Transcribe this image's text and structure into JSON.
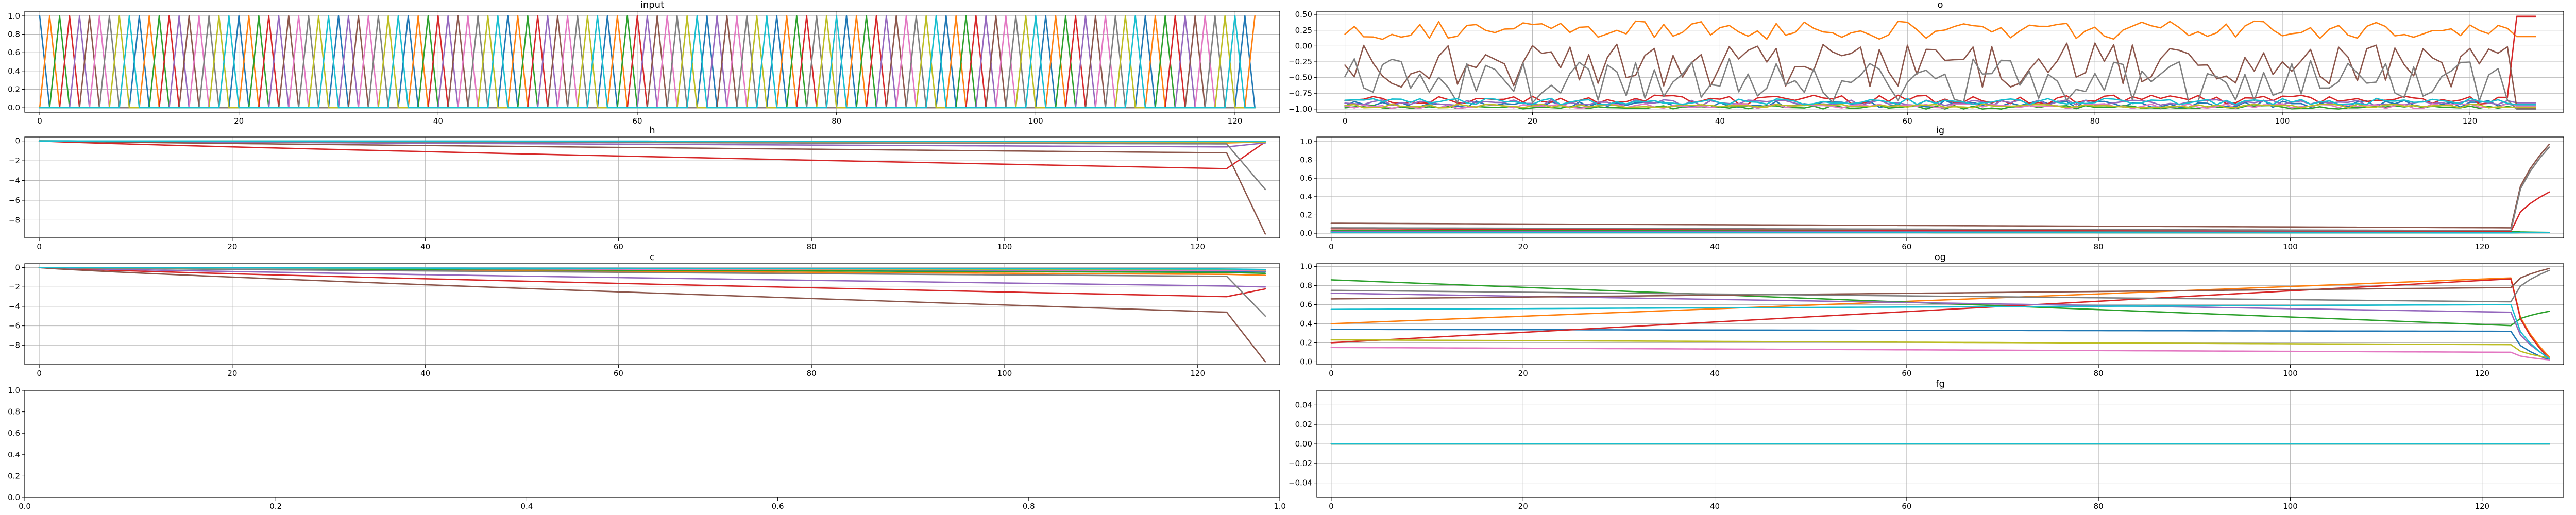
{
  "figure": {
    "background": "#ffffff"
  },
  "palette": [
    "#1f77b4",
    "#ff7f0e",
    "#2ca02c",
    "#d62728",
    "#9467bd",
    "#8c564b",
    "#e377c2",
    "#7f7f7f",
    "#bcbd22",
    "#17becf"
  ],
  "chart_data": [
    {
      "id": "input",
      "type": "line",
      "title": "input",
      "xlim": [
        -1.5,
        124.5
      ],
      "ylim": [
        -0.05,
        1.05
      ],
      "xticks": [
        0,
        20,
        40,
        60,
        80,
        100,
        120
      ],
      "xtick_labels": [
        "0",
        "20",
        "40",
        "60",
        "80",
        "100",
        "120"
      ],
      "yticks": [
        0,
        0.2,
        0.4,
        0.6,
        0.8,
        1.0
      ],
      "ytick_labels": [
        "0.0",
        "0.2",
        "0.4",
        "0.6",
        "0.8",
        "1.0"
      ],
      "grid": true,
      "series_generator": {
        "kind": "one-hot",
        "length": 123,
        "channels": 10,
        "colors": "palette"
      }
    },
    {
      "id": "o",
      "type": "line",
      "title": "o",
      "xlim": [
        -3,
        130
      ],
      "ylim": [
        -1.05,
        0.55
      ],
      "xticks": [
        0,
        20,
        40,
        60,
        80,
        100,
        120
      ],
      "xtick_labels": [
        "0",
        "20",
        "40",
        "60",
        "80",
        "100",
        "120"
      ],
      "yticks": [
        -1.0,
        -0.75,
        -0.5,
        -0.25,
        0.0,
        0.25,
        0.5
      ],
      "ytick_labels": [
        "−1.00",
        "−0.75",
        "−0.50",
        "−0.25",
        "0.00",
        "0.25",
        "0.50"
      ],
      "grid": true,
      "series_generator": {
        "kind": "noisy-levels",
        "length": 128,
        "jump_at": 124,
        "levels": [
          -0.92,
          0.25,
          -0.97,
          -0.85,
          -0.9,
          -0.3,
          -0.95,
          -0.55,
          -0.95,
          -0.88
        ],
        "noise": [
          0.06,
          0.15,
          0.03,
          0.07,
          0.05,
          0.35,
          0.04,
          0.35,
          0.03,
          0.05
        ],
        "end_values": [
          -0.95,
          0.15,
          -0.98,
          0.47,
          -0.9,
          -0.98,
          -0.95,
          -1.0,
          -0.97,
          -0.93
        ]
      }
    },
    {
      "id": "h",
      "type": "line",
      "title": "h",
      "xlim": [
        -1.5,
        128.5
      ],
      "ylim": [
        -9.8,
        0.4
      ],
      "xticks": [
        0,
        20,
        40,
        60,
        80,
        100,
        120
      ],
      "xtick_labels": [
        "0",
        "20",
        "40",
        "60",
        "80",
        "100",
        "120"
      ],
      "yticks": [
        -8,
        -6,
        -4,
        -2,
        0
      ],
      "ytick_labels": [
        "−8",
        "−6",
        "−4",
        "−2",
        "0"
      ],
      "grid": true,
      "series_generator": {
        "kind": "drift-then-shift",
        "length": 128,
        "knee": 123,
        "at_knee": [
          -0.05,
          -0.2,
          -0.1,
          -2.8,
          -0.6,
          -1.2,
          -0.15,
          -0.3,
          -0.1,
          -0.05
        ],
        "end_values": [
          -0.05,
          -0.1,
          -0.05,
          -0.1,
          -0.2,
          -9.4,
          -0.1,
          -4.9,
          -0.1,
          -0.05
        ]
      }
    },
    {
      "id": "ig",
      "type": "line",
      "title": "ig",
      "xlim": [
        -1.5,
        128.5
      ],
      "ylim": [
        -0.05,
        1.05
      ],
      "xticks": [
        0,
        20,
        40,
        60,
        80,
        100,
        120
      ],
      "xtick_labels": [
        "0",
        "20",
        "40",
        "60",
        "80",
        "100",
        "120"
      ],
      "yticks": [
        0,
        0.2,
        0.4,
        0.6,
        0.8,
        1.0
      ],
      "ytick_labels": [
        "0.0",
        "0.2",
        "0.4",
        "0.6",
        "0.8",
        "1.0"
      ],
      "grid": true,
      "series_generator": {
        "kind": "flat-then-spike",
        "length": 128,
        "knee": 123,
        "start": [
          0.02,
          0.01,
          0.03,
          0.05,
          0.02,
          0.11,
          0.01,
          0.06,
          0.01,
          0.01
        ],
        "at_knee": [
          0.01,
          0.005,
          0.02,
          0.02,
          0.01,
          0.06,
          0.005,
          0.03,
          0.005,
          0.005
        ],
        "end_values": [
          0.01,
          0.01,
          0.01,
          0.45,
          0.01,
          0.97,
          0.01,
          0.94,
          0.01,
          0.01
        ]
      }
    },
    {
      "id": "c",
      "type": "line",
      "title": "c",
      "xlim": [
        -1.5,
        128.5
      ],
      "ylim": [
        -10.0,
        0.4
      ],
      "xticks": [
        0,
        20,
        40,
        60,
        80,
        100,
        120
      ],
      "xtick_labels": [
        "0",
        "20",
        "40",
        "60",
        "80",
        "100",
        "120"
      ],
      "yticks": [
        -8,
        -6,
        -4,
        -2,
        0
      ],
      "ytick_labels": [
        "−8",
        "−6",
        "−4",
        "−2",
        "0"
      ],
      "grid": true,
      "series_generator": {
        "kind": "drift-then-shift",
        "length": 128,
        "knee": 123,
        "at_knee": [
          -0.4,
          -0.7,
          -0.5,
          -3.0,
          -1.9,
          -4.6,
          -0.3,
          -0.9,
          -0.2,
          -0.15
        ],
        "end_values": [
          -0.45,
          -0.8,
          -0.6,
          -2.2,
          -2.0,
          -9.7,
          -0.35,
          -5.0,
          -0.25,
          -0.2
        ]
      }
    },
    {
      "id": "og",
      "type": "line",
      "title": "og",
      "xlim": [
        -1.5,
        128.5
      ],
      "ylim": [
        -0.03,
        1.03
      ],
      "xticks": [
        0,
        20,
        40,
        60,
        80,
        100,
        120
      ],
      "xtick_labels": [
        "0",
        "20",
        "40",
        "60",
        "80",
        "100",
        "120"
      ],
      "yticks": [
        0,
        0.2,
        0.4,
        0.6,
        0.8,
        1.0
      ],
      "ytick_labels": [
        "0.0",
        "0.2",
        "0.4",
        "0.6",
        "0.8",
        "1.0"
      ],
      "grid": true,
      "series_generator": {
        "kind": "trend-then-snap",
        "length": 128,
        "knee": 123,
        "start": [
          0.34,
          0.4,
          0.86,
          0.2,
          0.72,
          0.66,
          0.15,
          0.75,
          0.23,
          0.55
        ],
        "at_knee": [
          0.32,
          0.88,
          0.38,
          0.87,
          0.52,
          0.78,
          0.1,
          0.63,
          0.18,
          0.6
        ],
        "end_values": [
          0.02,
          0.05,
          0.53,
          0.03,
          0.04,
          0.98,
          0.02,
          0.96,
          0.04,
          0.03
        ]
      }
    },
    {
      "id": "empty",
      "type": "line",
      "title": "",
      "xlim": [
        0,
        1
      ],
      "ylim": [
        0,
        1
      ],
      "xticks": [
        0,
        0.2,
        0.4,
        0.6,
        0.8,
        1.0
      ],
      "xtick_labels": [
        "0.0",
        "0.2",
        "0.4",
        "0.6",
        "0.8",
        "1.0"
      ],
      "yticks": [
        0,
        0.2,
        0.4,
        0.6,
        0.8,
        1.0
      ],
      "ytick_labels": [
        "0.0",
        "0.2",
        "0.4",
        "0.6",
        "0.8",
        "1.0"
      ],
      "grid": false,
      "series": []
    },
    {
      "id": "fg",
      "type": "line",
      "title": "fg",
      "xlim": [
        -1.5,
        128.5
      ],
      "ylim": [
        -0.055,
        0.055
      ],
      "xticks": [
        0,
        20,
        40,
        60,
        80,
        100,
        120
      ],
      "xtick_labels": [
        "0",
        "20",
        "40",
        "60",
        "80",
        "100",
        "120"
      ],
      "yticks": [
        -0.04,
        -0.02,
        0.0,
        0.02,
        0.04
      ],
      "ytick_labels": [
        "−0.04",
        "−0.02",
        "0.00",
        "0.02",
        "0.04"
      ],
      "grid": true,
      "series_generator": {
        "kind": "constant",
        "length": 128,
        "value": 0.0,
        "channels": 10
      }
    }
  ]
}
